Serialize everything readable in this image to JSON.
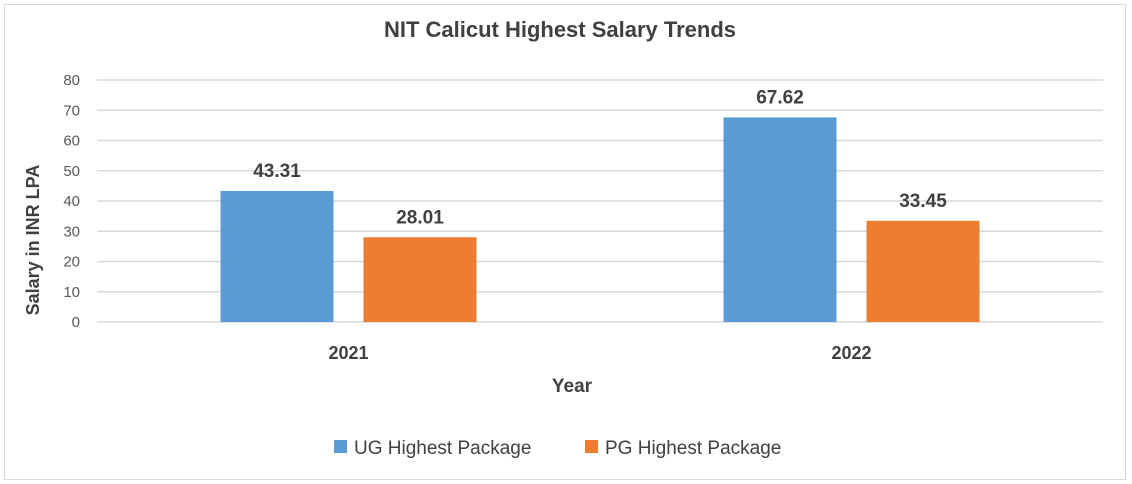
{
  "chart_data": {
    "type": "bar",
    "title": "NIT Calicut Highest Salary Trends",
    "xlabel": "Year",
    "ylabel": "Salary in INR LPA",
    "categories": [
      "2021",
      "2022"
    ],
    "series": [
      {
        "name": "UG Highest Package",
        "values": [
          43.31,
          67.62
        ],
        "labels": [
          "43.31",
          "67.62"
        ],
        "color": "#5b9bd5"
      },
      {
        "name": "PG Highest Package",
        "values": [
          28.01,
          33.45
        ],
        "labels": [
          "28.01",
          "33.45"
        ],
        "color": "#ed7d31"
      }
    ],
    "ylim": [
      0,
      80
    ],
    "yticks": [
      "0",
      "10",
      "20",
      "30",
      "40",
      "50",
      "60",
      "70",
      "80"
    ],
    "grid": true,
    "legend": "bottom"
  }
}
